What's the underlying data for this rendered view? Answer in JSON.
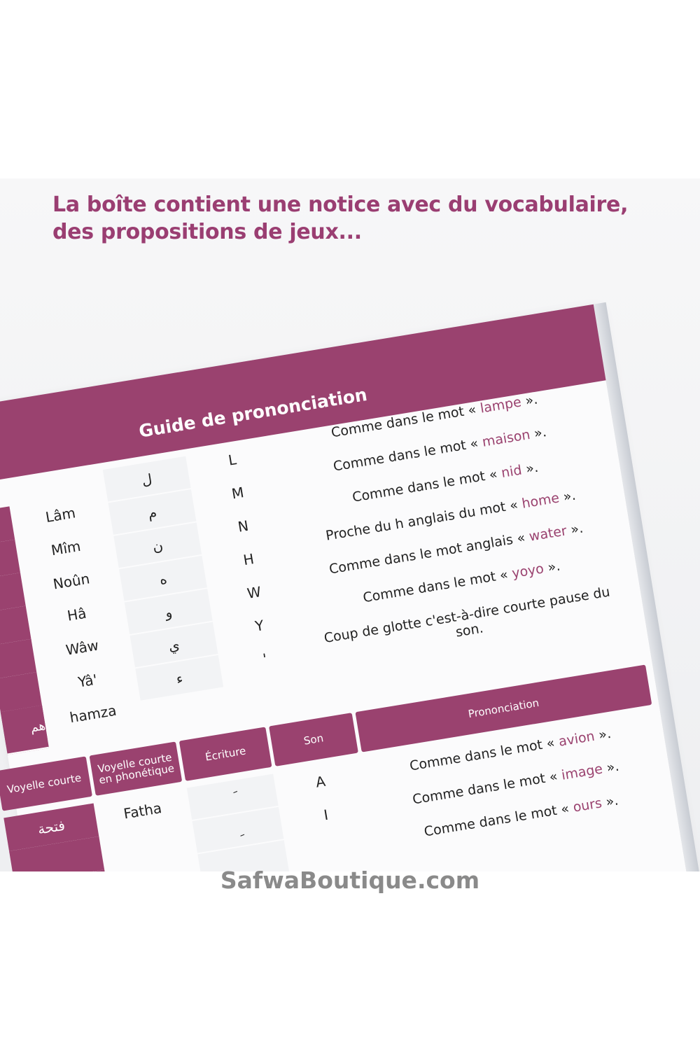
{
  "headline": {
    "line1": "La boîte contient une notice avec du vocabulaire,",
    "line2": "des propositions de jeux..."
  },
  "guide": {
    "title": "Guide de prononciation",
    "rows": [
      {
        "name": "Lâm",
        "arabic": "ل",
        "latin": "L",
        "pre": "Comme dans le mot « ",
        "word": "lampe",
        "post": " »."
      },
      {
        "name": "Mîm",
        "arabic": "م",
        "latin": "M",
        "pre": "Comme dans le mot « ",
        "word": "maison",
        "post": " »."
      },
      {
        "name": "Noûn",
        "arabic": "ن",
        "latin": "N",
        "pre": "Comme dans le mot « ",
        "word": "nid",
        "post": " »."
      },
      {
        "name": "Hâ",
        "arabic": "ه",
        "latin": "H",
        "pre": "Proche du h anglais du mot « ",
        "word": "home",
        "post": " »."
      },
      {
        "name": "Wâw",
        "arabic": "و",
        "latin": "W",
        "pre": "Comme dans le mot anglais « ",
        "word": "water",
        "post": " »."
      },
      {
        "name": "Yâ'",
        "arabic": "ي",
        "latin": "Y",
        "pre": "Comme dans le mot « ",
        "word": "yoyo",
        "post": " »."
      },
      {
        "name": "hamza",
        "arabic": "ء",
        "latin": "'",
        "pre": "Coup de glotte c'est-à-dire courte pause du son.",
        "word": "",
        "post": ""
      }
    ],
    "left_arabic_partial": "هم"
  },
  "vowels": {
    "headers": [
      "Voyelle courte",
      "Voyelle courte en phonétique",
      "Écriture",
      "Son",
      "Prononciation"
    ],
    "rows": [
      {
        "arabic": "فتحة",
        "phon": "Fatha",
        "mark": "َ",
        "sound": "A",
        "pre": "Comme dans le mot « ",
        "word": "avion",
        "post": " »."
      },
      {
        "arabic": "",
        "phon": "",
        "mark": "ِ",
        "sound": "I",
        "pre": "Comme dans le mot « ",
        "word": "image",
        "post": " »."
      },
      {
        "arabic": "",
        "phon": "",
        "mark": "",
        "sound": "",
        "pre": "Comme dans le mot « ",
        "word": "ours",
        "post": " »."
      }
    ]
  },
  "watermark": "SafwaBoutique.com",
  "colors": {
    "accent": "#9a426f"
  }
}
